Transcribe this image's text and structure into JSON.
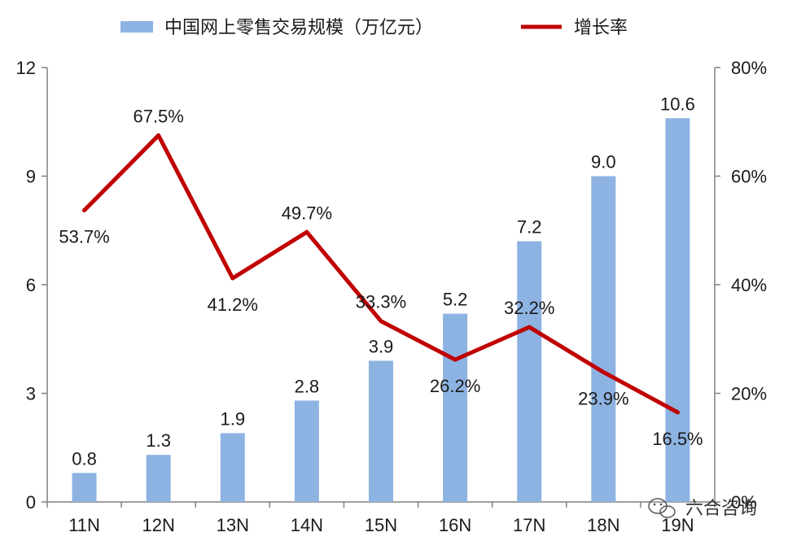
{
  "chart_data": {
    "type": "bar",
    "categories": [
      "11N",
      "12N",
      "13N",
      "14N",
      "15N",
      "16N",
      "17N",
      "18N",
      "19N"
    ],
    "series": [
      {
        "name": "中国网上零售交易规模（万亿元）",
        "type": "bar",
        "axis": "left",
        "color": "#8db3e2",
        "values": [
          0.8,
          1.3,
          1.9,
          2.8,
          3.9,
          5.2,
          7.2,
          9.0,
          10.6
        ],
        "labels": [
          "0.8",
          "1.3",
          "1.9",
          "2.8",
          "3.9",
          "5.2",
          "7.2",
          "9.0",
          "10.6"
        ]
      },
      {
        "name": "增长率",
        "type": "line",
        "axis": "right",
        "color": "#c00000",
        "values": [
          53.7,
          67.5,
          41.2,
          49.7,
          33.3,
          26.2,
          32.2,
          23.9,
          16.5
        ],
        "labels": [
          "53.7%",
          "67.5%",
          "41.2%",
          "49.7%",
          "33.3%",
          "26.2%",
          "32.2%",
          "23.9%",
          "16.5%"
        ]
      }
    ],
    "y_left": {
      "ylim": [
        0,
        12
      ],
      "ticks": [
        "0",
        "3",
        "6",
        "9",
        "12"
      ]
    },
    "y_right": {
      "ylim": [
        0,
        80
      ],
      "ticks": [
        "0%",
        "20%",
        "40%",
        "60%",
        "80%"
      ]
    },
    "legend_position": "top",
    "grid": false
  },
  "watermark": {
    "text": "六合咨询",
    "icon": "wechat-icon"
  }
}
